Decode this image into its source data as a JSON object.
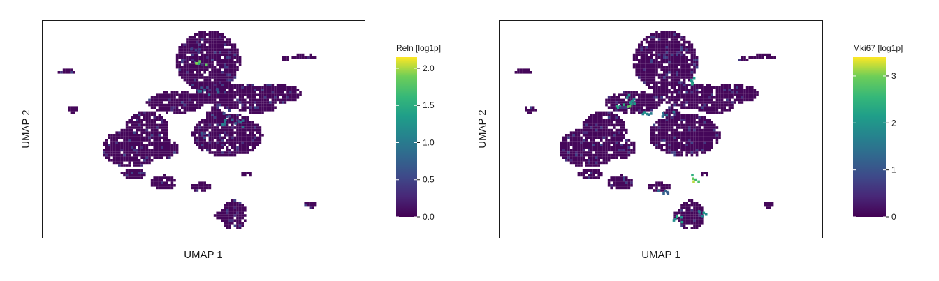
{
  "chart_data": [
    {
      "type": "scatter",
      "subtype": "hexbin-embedding",
      "xlabel": "UMAP 1",
      "ylabel": "UMAP 2",
      "colorbar": {
        "title": "Reln [log1p]",
        "colormap": "viridis",
        "range": [
          0,
          2.15
        ],
        "ticks": [
          0.0,
          0.5,
          1.0,
          1.5,
          2.0
        ],
        "tick_labels": [
          "0.0",
          "0.5",
          "1.0",
          "1.5",
          "2.0"
        ]
      },
      "highlights": [
        {
          "x": 0.49,
          "y": 0.81,
          "value": 2.1
        },
        {
          "x": 0.57,
          "y": 0.54,
          "value": 1.2
        },
        {
          "x": 0.6,
          "y": 0.53,
          "value": 1.0
        },
        {
          "x": 0.49,
          "y": 0.69,
          "value": 0.9
        },
        {
          "x": 0.53,
          "y": 0.68,
          "value": 0.8
        },
        {
          "x": 0.5,
          "y": 0.48,
          "value": 0.7
        },
        {
          "x": 0.56,
          "y": 0.58,
          "value": 0.6
        },
        {
          "x": 0.47,
          "y": 0.87,
          "value": 0.5
        }
      ]
    },
    {
      "type": "scatter",
      "subtype": "hexbin-embedding",
      "xlabel": "UMAP 1",
      "ylabel": "UMAP 2",
      "colorbar": {
        "title": "Mki67 [log1p]",
        "colormap": "viridis",
        "range": [
          0,
          3.4
        ],
        "ticks": [
          0,
          1,
          2,
          3
        ],
        "tick_labels": [
          "0",
          "1",
          "2",
          "3"
        ]
      },
      "highlights": [
        {
          "x": 0.4,
          "y": 0.62,
          "value": 3.0
        },
        {
          "x": 0.41,
          "y": 0.65,
          "value": 2.6
        },
        {
          "x": 0.37,
          "y": 0.61,
          "value": 2.4
        },
        {
          "x": 0.45,
          "y": 0.58,
          "value": 2.2
        },
        {
          "x": 0.59,
          "y": 0.73,
          "value": 2.5
        },
        {
          "x": 0.55,
          "y": 0.09,
          "value": 2.5
        },
        {
          "x": 0.63,
          "y": 0.12,
          "value": 2.2
        },
        {
          "x": 0.52,
          "y": 0.57,
          "value": 1.6
        },
        {
          "x": 0.5,
          "y": 0.22,
          "value": 1.5
        },
        {
          "x": 0.61,
          "y": 0.28,
          "value": 3.2
        }
      ]
    }
  ]
}
